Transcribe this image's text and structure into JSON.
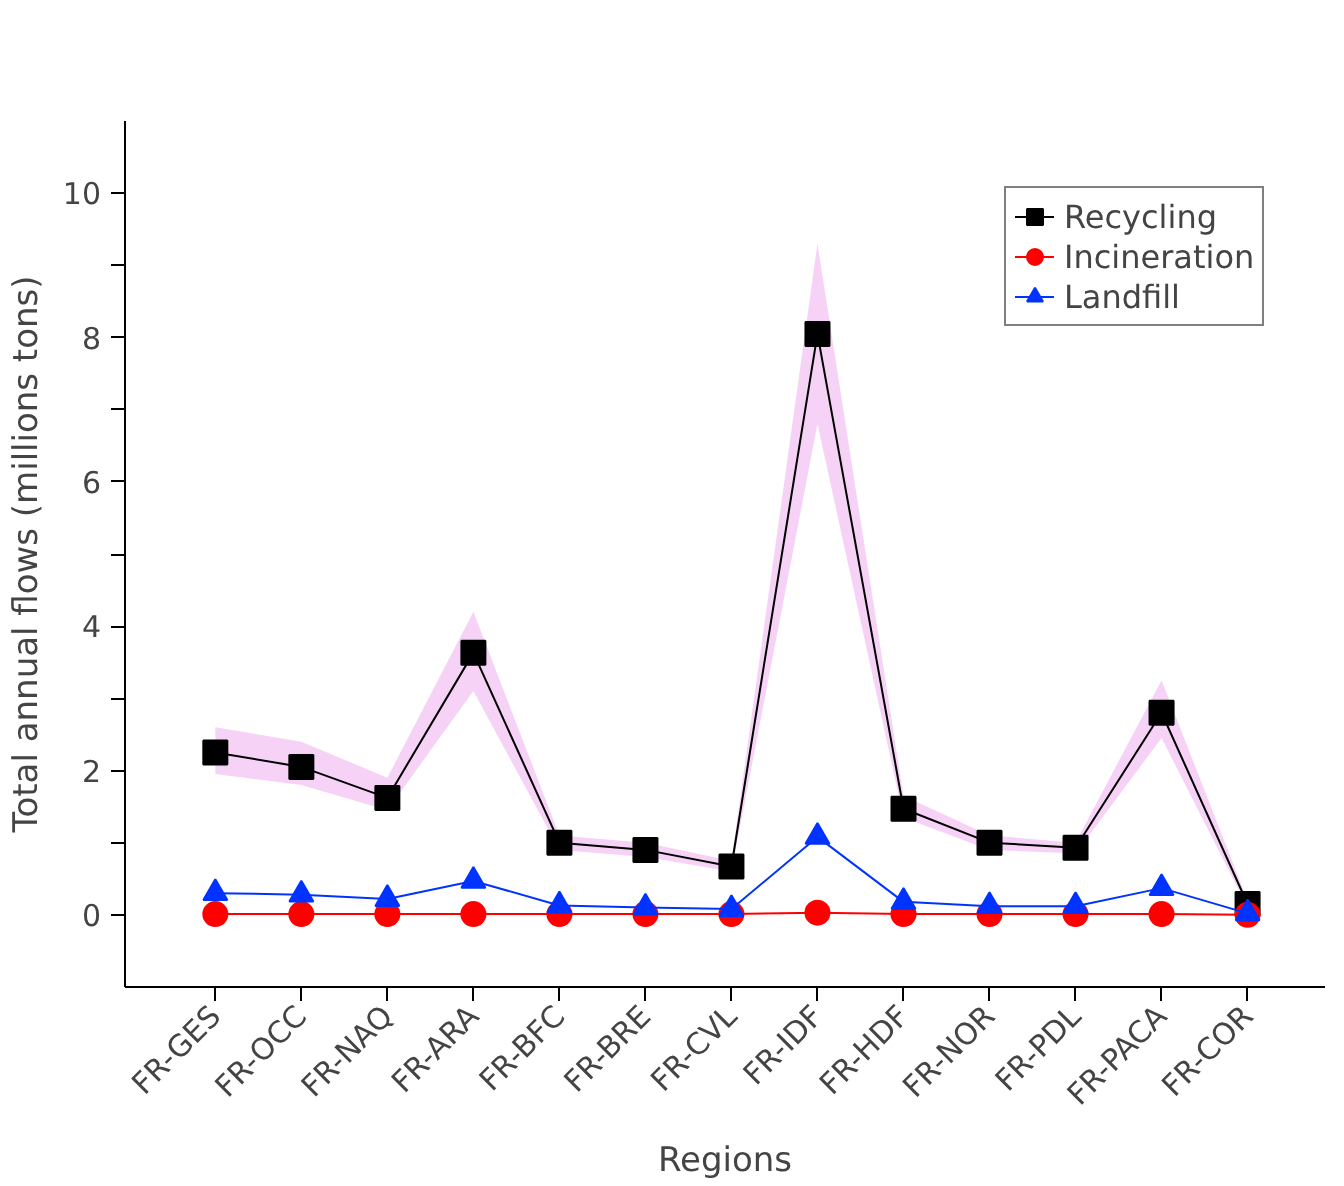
{
  "chart_data": {
    "type": "line",
    "xlabel": "Regions",
    "ylabel": "Total annual flows (millions tons)",
    "categories": [
      "FR-GES",
      "FR-OCC",
      "FR-NAQ",
      "FR-ARA",
      "FR-BFC",
      "FR-BRE",
      "FR-CVL",
      "FR-IDF",
      "FR-HDF",
      "FR-NOR",
      "FR-PDL",
      "FR-PACA",
      "FR-COR"
    ],
    "ylim": [
      -1,
      11
    ],
    "yticks": [
      0,
      {
        "value": 1,
        "label": null
      },
      2,
      {
        "value": 3,
        "label": null
      },
      4,
      {
        "value": 5,
        "label": null
      },
      6,
      {
        "value": 7,
        "label": null
      },
      8,
      {
        "value": 9,
        "label": null
      },
      10
    ],
    "grid": false,
    "legend": "top right",
    "series": [
      {
        "name": "Recycling",
        "color": "#000000",
        "marker": "square",
        "values": [
          2.25,
          2.05,
          1.62,
          3.63,
          1.0,
          0.9,
          0.67,
          8.05,
          1.47,
          1.0,
          0.93,
          2.8,
          0.15
        ],
        "lower": [
          1.95,
          1.8,
          1.45,
          3.1,
          0.9,
          0.8,
          0.6,
          6.8,
          1.35,
          0.9,
          0.85,
          2.45,
          0.1
        ],
        "upper": [
          2.6,
          2.4,
          1.9,
          4.2,
          1.1,
          1.0,
          0.75,
          9.3,
          1.65,
          1.1,
          1.0,
          3.25,
          0.2
        ]
      },
      {
        "name": "Incineration",
        "color": "#ff0000",
        "marker": "circle",
        "values": [
          0.01,
          0.01,
          0.01,
          0.01,
          0.01,
          0.01,
          0.01,
          0.03,
          0.01,
          0.01,
          0.01,
          0.01,
          0.0
        ]
      },
      {
        "name": "Landfill",
        "color": "#0033ff",
        "marker": "triangle",
        "values": [
          0.3,
          0.28,
          0.22,
          0.47,
          0.13,
          0.1,
          0.08,
          1.08,
          0.18,
          0.12,
          0.12,
          0.37,
          0.02
        ]
      }
    ]
  }
}
